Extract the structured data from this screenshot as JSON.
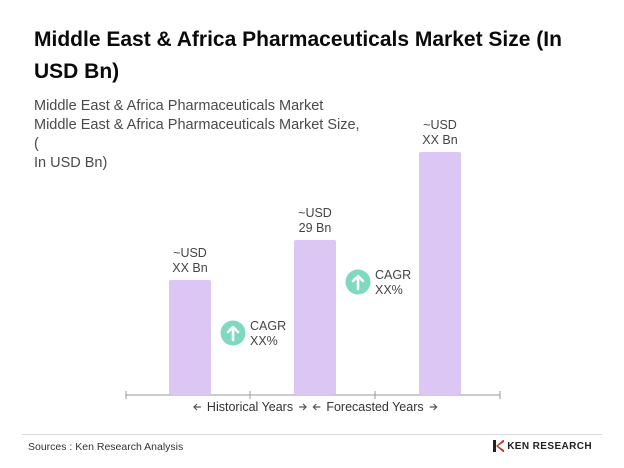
{
  "title": "Middle East & Africa Pharmaceuticals Market Size (In USD Bn)",
  "subtitle_lines": [
    "Middle East & Africa Pharmaceuticals Market",
    "Middle East & Africa Pharmaceuticals Market Size, (",
    "In USD Bn)"
  ],
  "chart_data": {
    "type": "bar",
    "categories": [
      "",
      "",
      ""
    ],
    "values": [
      null,
      29,
      null
    ],
    "bar_labels": [
      [
        "~USD",
        "XX Bn"
      ],
      [
        "~USD",
        "29 Bn"
      ],
      [
        "~USD",
        "XX Bn"
      ]
    ],
    "cagr_badges": [
      {
        "lines": [
          "CAGR",
          "XX%"
        ],
        "icon": "arrow-up-icon"
      },
      {
        "lines": [
          "CAGR",
          "XX%"
        ],
        "icon": "arrow-up-icon"
      }
    ],
    "period_labels": [
      {
        "text": "Historical Years",
        "arrows": "both"
      },
      {
        "text": "Forecasted Years",
        "arrows": "both"
      }
    ],
    "colors": {
      "bar": "#dcc6f4",
      "badge": "#7ed9c0",
      "axis": "#9a9a9a"
    },
    "grid": false,
    "legend": "none"
  },
  "footer": {
    "source": "Sources : Ken Research Analysis",
    "brand": "KEN RESEARCH"
  }
}
